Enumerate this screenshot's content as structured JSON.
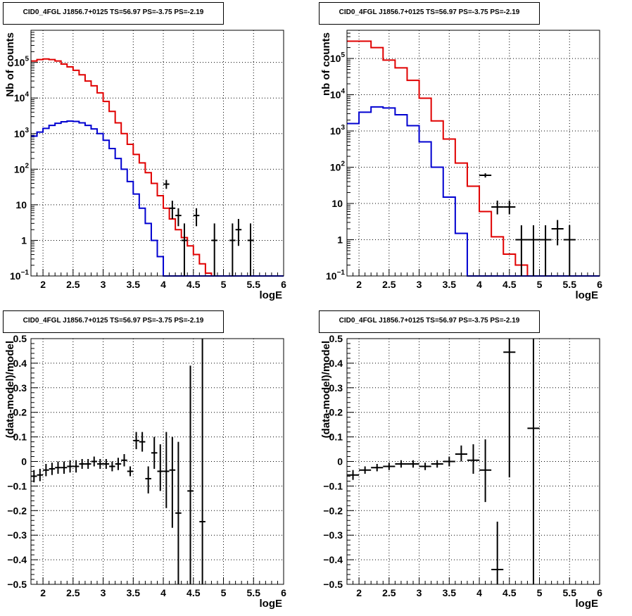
{
  "chart_data": [
    {
      "id": "p1",
      "type": "line",
      "title": "CID0_4FGL J1856.7+0125 TS=56.97 PS=-3.75 PS=-2.19",
      "xlabel": "logE",
      "ylabel": "Nb of counts",
      "xlim": [
        1.8,
        6.0
      ],
      "ylim": [
        0.1,
        800000
      ],
      "log_y": true,
      "grid": true,
      "x_ticks": [
        "2",
        "2.5",
        "3",
        "3.5",
        "4",
        "4.5",
        "5",
        "5.5",
        "6"
      ],
      "y_ticks": [
        {
          "v": 0.1,
          "base": "10",
          "exp": "−1"
        },
        {
          "v": 1,
          "base": "1",
          "exp": ""
        },
        {
          "v": 10,
          "base": "10",
          "exp": ""
        },
        {
          "v": 100,
          "base": "10",
          "exp": "2"
        },
        {
          "v": 1000,
          "base": "10",
          "exp": "3"
        },
        {
          "v": 10000,
          "base": "10",
          "exp": "4"
        },
        {
          "v": 100000,
          "base": "10",
          "exp": "5"
        }
      ],
      "bin_edges": [
        1.8,
        1.9,
        2.0,
        2.1,
        2.2,
        2.3,
        2.4,
        2.5,
        2.6,
        2.7,
        2.8,
        2.9,
        3.0,
        3.1,
        3.2,
        3.3,
        3.4,
        3.5,
        3.6,
        3.7,
        3.8,
        3.9,
        4.0,
        4.1,
        4.2,
        4.3,
        4.4,
        4.5,
        4.6,
        4.7,
        4.8,
        4.9,
        5.0,
        5.1,
        5.2,
        5.3,
        5.4,
        5.5,
        5.6,
        5.7,
        5.8,
        5.9,
        6.0
      ],
      "series": [
        {
          "color": "#e00000",
          "kind": "step",
          "values": [
            110000,
            120000,
            125000,
            120000,
            110000,
            90000,
            75000,
            60000,
            45000,
            30000,
            22000,
            14000,
            8000,
            4200,
            2000,
            1000,
            500,
            260,
            150,
            80,
            40,
            18,
            8,
            4,
            2,
            1.2,
            0.7,
            0.4,
            0.22,
            0.12,
            0.1,
            0.1,
            0.1,
            0.1,
            0.1,
            0.1,
            0.1,
            0.1,
            0.1,
            0.1,
            0.1,
            0.1
          ]
        },
        {
          "color": "#0000d0",
          "kind": "step",
          "values": [
            850,
            1100,
            1400,
            1700,
            1950,
            2150,
            2250,
            2200,
            2000,
            1700,
            1350,
            1000,
            650,
            380,
            200,
            100,
            45,
            20,
            8,
            3,
            1,
            0.35,
            0.1,
            0.1,
            0.1,
            0.1,
            0.1,
            0.1,
            0.1,
            0.1,
            0.1,
            0.1,
            0.1,
            0.1,
            0.1,
            0.1,
            0.1,
            0.1,
            0.1,
            0.1,
            0.1,
            0.1
          ]
        },
        {
          "color": "#000000",
          "kind": "errorbar",
          "points": [
            {
              "x": 4.05,
              "y": 38,
              "lo": 28,
              "hi": 50,
              "xerr": 0.05
            },
            {
              "x": 4.15,
              "y": 8,
              "lo": 4,
              "hi": 13,
              "xerr": 0.05
            },
            {
              "x": 4.25,
              "y": 5,
              "lo": 2.5,
              "hi": 8,
              "xerr": 0.05
            },
            {
              "x": 4.35,
              "y": 1,
              "lo": 0.1,
              "hi": 3,
              "xerr": 0.05
            },
            {
              "x": 4.55,
              "y": 5,
              "lo": 2.5,
              "hi": 8,
              "xerr": 0.05
            },
            {
              "x": 4.85,
              "y": 1,
              "lo": 0.1,
              "hi": 3,
              "xerr": 0.05
            },
            {
              "x": 5.15,
              "y": 1,
              "lo": 0.1,
              "hi": 3,
              "xerr": 0.05
            },
            {
              "x": 5.25,
              "y": 2,
              "lo": 0.7,
              "hi": 4,
              "xerr": 0.05
            },
            {
              "x": 5.45,
              "y": 1,
              "lo": 0.1,
              "hi": 3,
              "xerr": 0.05
            }
          ]
        }
      ]
    },
    {
      "id": "p2",
      "type": "line",
      "title": "CID0_4FGL J1856.7+0125 TS=56.97 PS=-3.75 PS=-2.19",
      "xlabel": "logE",
      "ylabel": "nb of counts",
      "xlim": [
        1.8,
        6.0
      ],
      "ylim": [
        0.1,
        600000
      ],
      "log_y": true,
      "grid": true,
      "x_ticks": [
        "2",
        "2.5",
        "3",
        "3.5",
        "4",
        "4.5",
        "5",
        "5.5",
        "6"
      ],
      "y_ticks": [
        {
          "v": 0.1,
          "base": "10",
          "exp": "−1"
        },
        {
          "v": 1,
          "base": "1",
          "exp": ""
        },
        {
          "v": 10,
          "base": "10",
          "exp": ""
        },
        {
          "v": 100,
          "base": "10",
          "exp": "2"
        },
        {
          "v": 1000,
          "base": "10",
          "exp": "3"
        },
        {
          "v": 10000,
          "base": "10",
          "exp": "4"
        },
        {
          "v": 100000,
          "base": "10",
          "exp": "5"
        }
      ],
      "bin_edges": [
        1.8,
        2.0,
        2.2,
        2.4,
        2.6,
        2.8,
        3.0,
        3.2,
        3.4,
        3.6,
        3.8,
        4.0,
        4.2,
        4.4,
        4.6,
        4.8,
        5.0,
        5.2,
        5.4,
        5.6,
        5.8,
        6.0
      ],
      "series": [
        {
          "color": "#e00000",
          "kind": "step",
          "values": [
            300000,
            300000,
            200000,
            90000,
            55000,
            25000,
            8000,
            1900,
            600,
            130,
            30,
            6,
            1.2,
            0.4,
            0.2,
            0.1,
            0.1,
            0.1,
            0.1,
            0.1,
            0.1
          ]
        },
        {
          "color": "#0000d0",
          "kind": "step",
          "values": [
            1600,
            3300,
            4600,
            4300,
            2800,
            1400,
            500,
            100,
            15,
            1.5,
            0.1,
            0.1,
            0.1,
            0.1,
            0.1,
            0.1,
            0.1,
            0.1,
            0.1,
            0.1,
            0.1
          ]
        },
        {
          "color": "#000000",
          "kind": "errorbar",
          "points": [
            {
              "x": 4.1,
              "y": 60,
              "lo": 52,
              "hi": 68,
              "xerr": 0.1
            },
            {
              "x": 4.3,
              "y": 8,
              "lo": 5,
              "hi": 12,
              "xerr": 0.1
            },
            {
              "x": 4.5,
              "y": 8,
              "lo": 5,
              "hi": 12,
              "xerr": 0.1
            },
            {
              "x": 4.7,
              "y": 1,
              "lo": 0.1,
              "hi": 2.5,
              "xerr": 0.1
            },
            {
              "x": 4.9,
              "y": 1,
              "lo": 0.1,
              "hi": 2.5,
              "xerr": 0.1
            },
            {
              "x": 5.1,
              "y": 1,
              "lo": 0.1,
              "hi": 2.5,
              "xerr": 0.1
            },
            {
              "x": 5.3,
              "y": 2,
              "lo": 0.7,
              "hi": 3.5,
              "xerr": 0.1
            },
            {
              "x": 5.5,
              "y": 1,
              "lo": 0.1,
              "hi": 2.5,
              "xerr": 0.1
            }
          ]
        }
      ]
    },
    {
      "id": "p3",
      "type": "scatter",
      "title": "CID0_4FGL J1856.7+0125 TS=56.97 PS=-3.75 PS=-2.19",
      "xlabel": "logE",
      "ylabel": "(data-model)/model",
      "xlim": [
        1.8,
        6.0
      ],
      "ylim": [
        -0.5,
        0.5
      ],
      "log_y": false,
      "grid": true,
      "x_ticks": [
        "2",
        "2.5",
        "3",
        "3.5",
        "4",
        "4.5",
        "5",
        "5.5",
        "6"
      ],
      "y_ticks": [
        {
          "v": -0.5,
          "base": "−0.5",
          "exp": ""
        },
        {
          "v": -0.4,
          "base": "−0.4",
          "exp": ""
        },
        {
          "v": -0.3,
          "base": "−0.3",
          "exp": ""
        },
        {
          "v": -0.2,
          "base": "−0.2",
          "exp": ""
        },
        {
          "v": -0.1,
          "base": "−0.1",
          "exp": ""
        },
        {
          "v": 0,
          "base": "0",
          "exp": ""
        },
        {
          "v": 0.1,
          "base": "0.1",
          "exp": ""
        },
        {
          "v": 0.2,
          "base": "0.2",
          "exp": ""
        },
        {
          "v": 0.3,
          "base": "0.3",
          "exp": ""
        },
        {
          "v": 0.4,
          "base": "0.4",
          "exp": ""
        },
        {
          "v": 0.5,
          "base": "0.5",
          "exp": ""
        }
      ],
      "series": [
        {
          "color": "#000000",
          "kind": "errorbar",
          "points": [
            {
              "x": 1.85,
              "y": -0.06,
              "lo": -0.085,
              "hi": -0.035,
              "xerr": 0.05
            },
            {
              "x": 1.95,
              "y": -0.055,
              "lo": -0.08,
              "hi": -0.03,
              "xerr": 0.05
            },
            {
              "x": 2.05,
              "y": -0.035,
              "lo": -0.06,
              "hi": -0.01,
              "xerr": 0.05
            },
            {
              "x": 2.15,
              "y": -0.03,
              "lo": -0.055,
              "hi": -0.005,
              "xerr": 0.05
            },
            {
              "x": 2.25,
              "y": -0.025,
              "lo": -0.05,
              "hi": 0.0,
              "xerr": 0.05
            },
            {
              "x": 2.35,
              "y": -0.025,
              "lo": -0.05,
              "hi": 0.0,
              "xerr": 0.05
            },
            {
              "x": 2.45,
              "y": -0.02,
              "lo": -0.045,
              "hi": 0.005,
              "xerr": 0.05
            },
            {
              "x": 2.55,
              "y": -0.02,
              "lo": -0.045,
              "hi": 0.005,
              "xerr": 0.05
            },
            {
              "x": 2.65,
              "y": -0.01,
              "lo": -0.03,
              "hi": 0.01,
              "xerr": 0.05
            },
            {
              "x": 2.75,
              "y": -0.01,
              "lo": -0.03,
              "hi": 0.01,
              "xerr": 0.05
            },
            {
              "x": 2.85,
              "y": 0.0,
              "lo": -0.02,
              "hi": 0.02,
              "xerr": 0.05
            },
            {
              "x": 2.95,
              "y": -0.01,
              "lo": -0.03,
              "hi": 0.01,
              "xerr": 0.05
            },
            {
              "x": 3.05,
              "y": -0.01,
              "lo": -0.03,
              "hi": 0.01,
              "xerr": 0.05
            },
            {
              "x": 3.15,
              "y": -0.02,
              "lo": -0.04,
              "hi": 0.0,
              "xerr": 0.05
            },
            {
              "x": 3.25,
              "y": -0.01,
              "lo": -0.035,
              "hi": 0.015,
              "xerr": 0.05
            },
            {
              "x": 3.35,
              "y": 0.005,
              "lo": -0.02,
              "hi": 0.03,
              "xerr": 0.05
            },
            {
              "x": 3.45,
              "y": -0.04,
              "lo": -0.06,
              "hi": -0.02,
              "xerr": 0.05
            },
            {
              "x": 3.55,
              "y": 0.085,
              "lo": 0.05,
              "hi": 0.12,
              "xerr": 0.05
            },
            {
              "x": 3.65,
              "y": 0.08,
              "lo": 0.04,
              "hi": 0.12,
              "xerr": 0.05
            },
            {
              "x": 3.75,
              "y": -0.07,
              "lo": -0.13,
              "hi": -0.02,
              "xerr": 0.05
            },
            {
              "x": 3.85,
              "y": 0.035,
              "lo": -0.03,
              "hi": 0.1,
              "xerr": 0.05
            },
            {
              "x": 3.95,
              "y": -0.04,
              "lo": -0.12,
              "hi": 0.07,
              "xerr": 0.05
            },
            {
              "x": 4.05,
              "y": -0.04,
              "lo": -0.19,
              "hi": 0.12,
              "xerr": 0.05
            },
            {
              "x": 4.15,
              "y": -0.035,
              "lo": -0.27,
              "hi": 0.1,
              "xerr": 0.05
            },
            {
              "x": 4.25,
              "y": -0.21,
              "lo": -0.5,
              "hi": 0.08,
              "xerr": 0.05
            },
            {
              "x": 4.45,
              "y": -0.12,
              "lo": -0.5,
              "hi": 0.39,
              "xerr": 0.05
            },
            {
              "x": 4.65,
              "y": -0.245,
              "lo": -0.5,
              "hi": 0.5,
              "xerr": 0.05
            }
          ]
        }
      ]
    },
    {
      "id": "p4",
      "type": "scatter",
      "title": "CID0_4FGL J1856.7+0125 TS=56.97 PS=-3.75 PS=-2.19",
      "xlabel": "logE",
      "ylabel": "(data-model)/model",
      "xlim": [
        1.8,
        6.0
      ],
      "ylim": [
        -0.5,
        0.5
      ],
      "log_y": false,
      "grid": true,
      "x_ticks": [
        "2",
        "2.5",
        "3",
        "3.5",
        "4",
        "4.5",
        "5",
        "5.5",
        "6"
      ],
      "y_ticks": [
        {
          "v": -0.5,
          "base": "−0.5",
          "exp": ""
        },
        {
          "v": -0.4,
          "base": "−0.4",
          "exp": ""
        },
        {
          "v": -0.3,
          "base": "−0.3",
          "exp": ""
        },
        {
          "v": -0.2,
          "base": "−0.2",
          "exp": ""
        },
        {
          "v": -0.1,
          "base": "−0.1",
          "exp": ""
        },
        {
          "v": 0,
          "base": "0",
          "exp": ""
        },
        {
          "v": 0.1,
          "base": "0.1",
          "exp": ""
        },
        {
          "v": 0.2,
          "base": "0.2",
          "exp": ""
        },
        {
          "v": 0.3,
          "base": "0.3",
          "exp": ""
        },
        {
          "v": 0.4,
          "base": "0.4",
          "exp": ""
        },
        {
          "v": 0.5,
          "base": "0.5",
          "exp": ""
        }
      ],
      "series": [
        {
          "color": "#000000",
          "kind": "errorbar",
          "points": [
            {
              "x": 1.9,
              "y": -0.055,
              "lo": -0.075,
              "hi": -0.035,
              "xerr": 0.1
            },
            {
              "x": 2.1,
              "y": -0.035,
              "lo": -0.05,
              "hi": -0.02,
              "xerr": 0.1
            },
            {
              "x": 2.3,
              "y": -0.025,
              "lo": -0.04,
              "hi": -0.01,
              "xerr": 0.1
            },
            {
              "x": 2.5,
              "y": -0.02,
              "lo": -0.035,
              "hi": -0.005,
              "xerr": 0.1
            },
            {
              "x": 2.7,
              "y": -0.01,
              "lo": -0.025,
              "hi": 0.005,
              "xerr": 0.1
            },
            {
              "x": 2.9,
              "y": -0.01,
              "lo": -0.025,
              "hi": 0.005,
              "xerr": 0.1
            },
            {
              "x": 3.1,
              "y": -0.02,
              "lo": -0.035,
              "hi": -0.005,
              "xerr": 0.1
            },
            {
              "x": 3.3,
              "y": -0.01,
              "lo": -0.025,
              "hi": 0.005,
              "xerr": 0.1
            },
            {
              "x": 3.5,
              "y": 0.0,
              "lo": -0.02,
              "hi": 0.02,
              "xerr": 0.1
            },
            {
              "x": 3.7,
              "y": 0.03,
              "lo": 0.0,
              "hi": 0.065,
              "xerr": 0.1
            },
            {
              "x": 3.9,
              "y": 0.005,
              "lo": -0.05,
              "hi": 0.07,
              "xerr": 0.1
            },
            {
              "x": 4.1,
              "y": -0.035,
              "lo": -0.165,
              "hi": 0.09,
              "xerr": 0.1
            },
            {
              "x": 4.3,
              "y": -0.44,
              "lo": -0.5,
              "hi": -0.245,
              "xerr": 0.1
            },
            {
              "x": 4.5,
              "y": 0.445,
              "lo": -0.065,
              "hi": 0.5,
              "xerr": 0.1
            },
            {
              "x": 4.9,
              "y": 0.135,
              "lo": -0.5,
              "hi": 0.5,
              "xerr": 0.1
            }
          ]
        }
      ]
    }
  ]
}
